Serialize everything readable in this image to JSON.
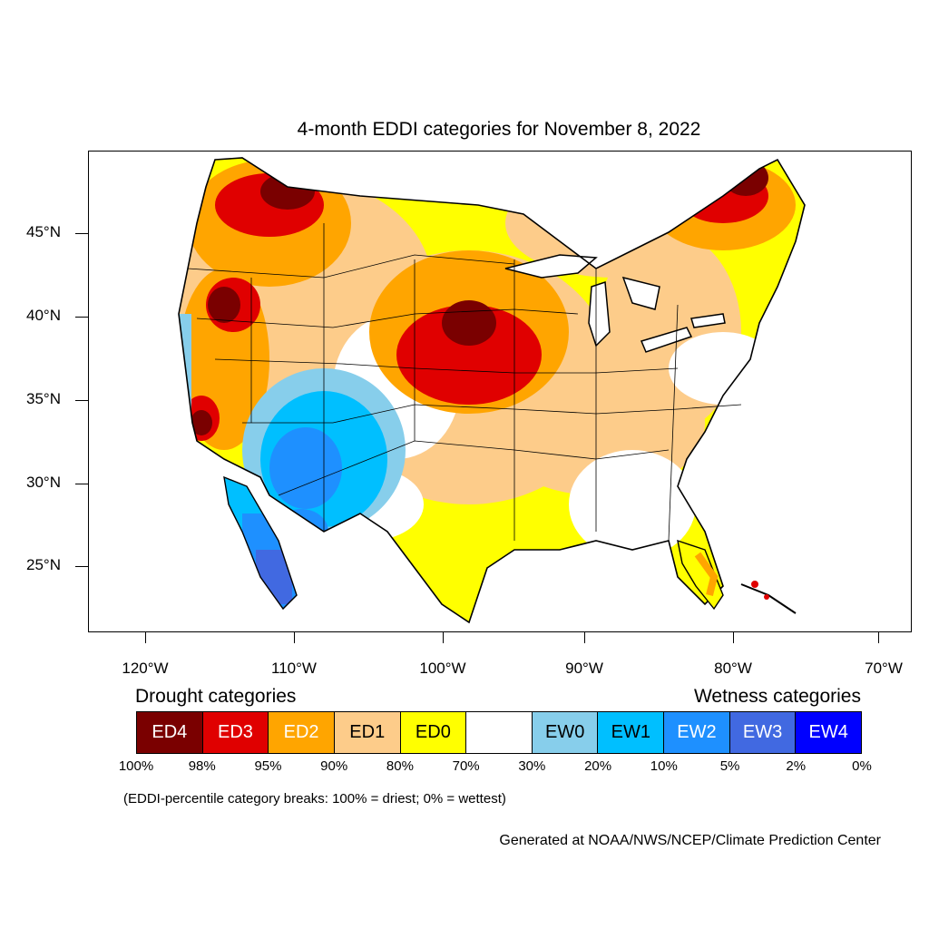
{
  "title": "4-month EDDI categories for November 8, 2022",
  "axes": {
    "lat_labels": [
      "45°N",
      "40°N",
      "35°N",
      "30°N",
      "25°N"
    ],
    "lon_labels": [
      "120°W",
      "110°W",
      "100°W",
      "90°W",
      "80°W",
      "70°W"
    ]
  },
  "legend": {
    "drought_heading": "Drought categories",
    "wetness_heading": "Wetness categories",
    "categories": [
      {
        "label": "ED4",
        "color": "#7a0000",
        "text_color": "#ffffff"
      },
      {
        "label": "ED3",
        "color": "#e00000",
        "text_color": "#ffffff"
      },
      {
        "label": "ED2",
        "color": "#ffa500",
        "text_color": "#ffffff"
      },
      {
        "label": "ED1",
        "color": "#fdcc8a",
        "text_color": "#000000"
      },
      {
        "label": "ED0",
        "color": "#ffff00",
        "text_color": "#000000"
      },
      {
        "label": "",
        "color": "#ffffff",
        "text_color": "#000000"
      },
      {
        "label": "EW0",
        "color": "#87ceeb",
        "text_color": "#000000"
      },
      {
        "label": "EW1",
        "color": "#00bfff",
        "text_color": "#000000"
      },
      {
        "label": "EW2",
        "color": "#1e90ff",
        "text_color": "#ffffff"
      },
      {
        "label": "EW3",
        "color": "#4169e1",
        "text_color": "#ffffff"
      },
      {
        "label": "EW4",
        "color": "#0000ff",
        "text_color": "#ffffff"
      }
    ],
    "percentiles": [
      "100%",
      "98%",
      "95%",
      "90%",
      "80%",
      "70%",
      "30%",
      "20%",
      "10%",
      "5%",
      "2%",
      "0%"
    ],
    "breaks_note": "(EDDI-percentile category breaks: 100% = driest; 0% = wettest)"
  },
  "credit": "Generated at NOAA/NWS/NCEP/Climate Prediction Center"
}
